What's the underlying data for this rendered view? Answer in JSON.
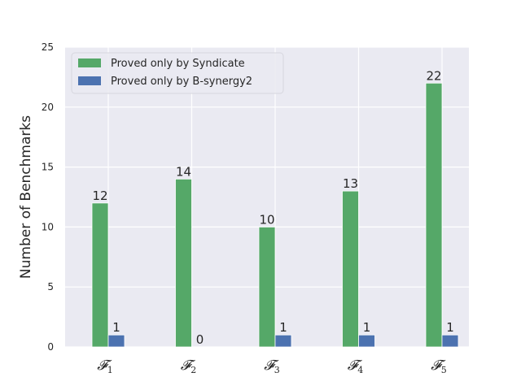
{
  "chart_data": {
    "type": "bar",
    "categories": [
      "F1",
      "F2",
      "F3",
      "F4",
      "F5"
    ],
    "category_labels": [
      {
        "main": "𝓕",
        "sub": "1"
      },
      {
        "main": "𝓕",
        "sub": "2"
      },
      {
        "main": "𝓕",
        "sub": "3"
      },
      {
        "main": "𝓕",
        "sub": "4"
      },
      {
        "main": "𝓕",
        "sub": "5"
      }
    ],
    "series": [
      {
        "name": "Proved only by Syndicate",
        "color": "#55a868",
        "values": [
          12,
          14,
          10,
          13,
          22
        ]
      },
      {
        "name": "Proved only by B-synergy2",
        "color": "#4c72b0",
        "values": [
          1,
          0,
          1,
          1,
          1
        ]
      }
    ],
    "ylabel": "Number of Benchmarks",
    "xlabel": "",
    "ylim": [
      0,
      25
    ],
    "yticks": [
      0,
      5,
      10,
      15,
      20,
      25
    ],
    "grid": true,
    "legend_position": "top-left",
    "style": {
      "background": "#eaeaf2",
      "grid_color": "#ffffff"
    }
  }
}
